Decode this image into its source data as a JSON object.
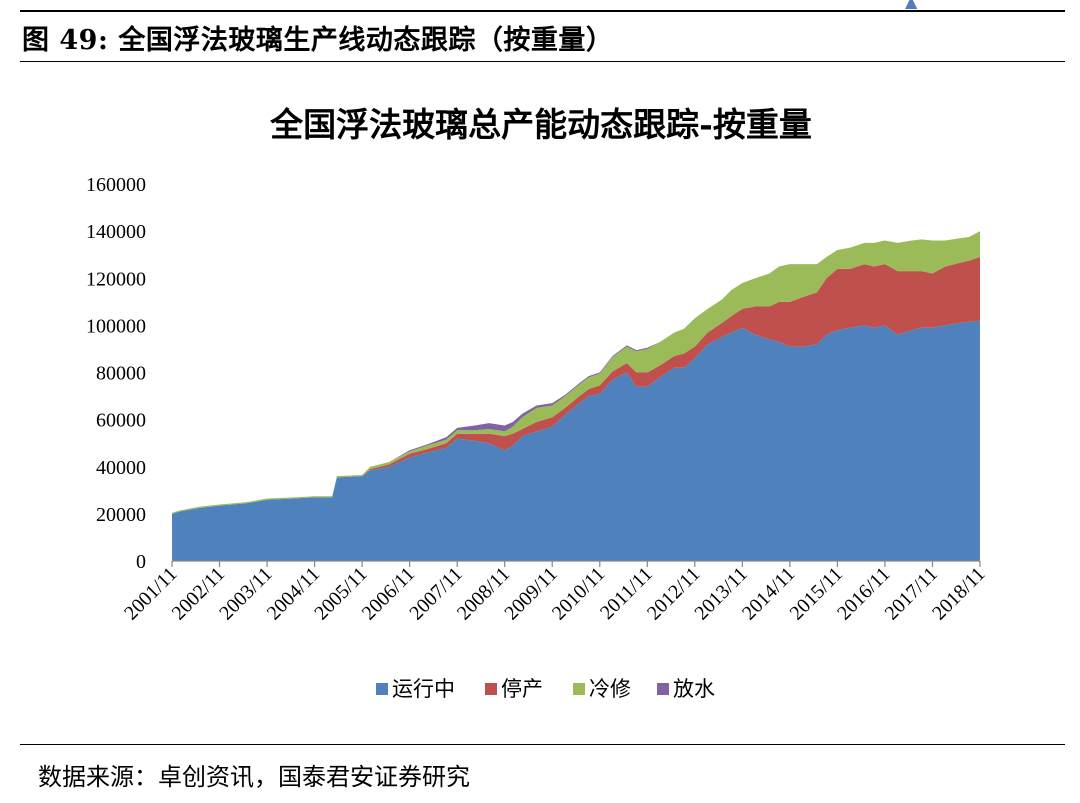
{
  "figure": {
    "label": "图 49:  全国浮法玻璃生产线动态跟踪（按重量）",
    "source": "数据来源：卓创资讯，国泰君安证券研究"
  },
  "chart_data": {
    "type": "area",
    "stacked": true,
    "title": "全国浮法玻璃总产能动态跟踪-按重量",
    "xlabel": "",
    "ylabel": "",
    "ylim": [
      0,
      160000
    ],
    "yticks": [
      "0",
      "20000",
      "40000",
      "60000",
      "80000",
      "100000",
      "120000",
      "140000",
      "160000"
    ],
    "xticks": [
      "2001/11",
      "2002/11",
      "2003/11",
      "2004/11",
      "2005/11",
      "2006/11",
      "2007/11",
      "2008/11",
      "2009/11",
      "2010/11",
      "2011/11",
      "2012/11",
      "2013/11",
      "2014/11",
      "2015/11",
      "2016/11",
      "2017/11",
      "2018/11"
    ],
    "legend_position": "bottom",
    "x": [
      2001.83,
      2002.0,
      2002.4,
      2002.83,
      2003.4,
      2003.83,
      2004.4,
      2004.83,
      2005.2,
      2005.3,
      2005.83,
      2006.0,
      2006.4,
      2006.83,
      2007.2,
      2007.6,
      2007.83,
      2008.2,
      2008.5,
      2008.83,
      2009.0,
      2009.2,
      2009.5,
      2009.83,
      2010.1,
      2010.4,
      2010.6,
      2010.83,
      2011.1,
      2011.4,
      2011.6,
      2011.83,
      2012.1,
      2012.4,
      2012.6,
      2012.83,
      2013.1,
      2013.4,
      2013.6,
      2013.83,
      2014.1,
      2014.4,
      2014.6,
      2014.83,
      2015.1,
      2015.4,
      2015.6,
      2015.83,
      2016.1,
      2016.4,
      2016.6,
      2016.83,
      2017.1,
      2017.4,
      2017.6,
      2017.83,
      2018.1,
      2018.4,
      2018.6,
      2018.83
    ],
    "series": [
      {
        "name": "运行中",
        "color": "#4f81bd",
        "values": [
          20000,
          21000,
          22500,
          23500,
          24500,
          26000,
          26500,
          27000,
          27000,
          35500,
          36000,
          38500,
          40000,
          44000,
          46000,
          48000,
          52000,
          51000,
          50000,
          47000,
          49000,
          53000,
          55000,
          57000,
          62000,
          67000,
          70000,
          71000,
          77000,
          80000,
          74000,
          74000,
          78000,
          82000,
          82000,
          86000,
          92000,
          95000,
          97000,
          99000,
          96000,
          94000,
          93000,
          91000,
          91000,
          92000,
          96000,
          98000,
          99000,
          100000,
          99000,
          100000,
          96000,
          98000,
          99000,
          99000,
          100000,
          101000,
          101500,
          102000
        ]
      },
      {
        "name": "停产",
        "color": "#c0504d",
        "values": [
          0,
          0,
          0,
          0,
          0,
          0,
          0,
          0,
          0,
          0,
          0,
          500,
          1000,
          1500,
          1500,
          2000,
          2000,
          3000,
          4000,
          6000,
          5000,
          3000,
          4000,
          4000,
          3000,
          3000,
          3000,
          3500,
          3500,
          4000,
          6000,
          6000,
          5000,
          5000,
          6000,
          5000,
          5000,
          6000,
          7000,
          8000,
          12000,
          14000,
          17000,
          19000,
          21000,
          22000,
          24000,
          26000,
          25000,
          26000,
          26000,
          26000,
          27000,
          25000,
          24000,
          23000,
          25000,
          25500,
          26000,
          27000
        ]
      },
      {
        "name": "冷修",
        "color": "#9bbb59",
        "values": [
          500,
          500,
          500,
          500,
          500,
          500,
          500,
          500,
          500,
          500,
          500,
          1000,
          1000,
          1000,
          1500,
          1500,
          1500,
          1500,
          2000,
          2000,
          3000,
          5000,
          6000,
          5000,
          5000,
          5000,
          5000,
          5000,
          6000,
          7000,
          9000,
          10000,
          10000,
          10000,
          10500,
          12000,
          10000,
          10000,
          11000,
          11000,
          12000,
          14000,
          15000,
          16000,
          14000,
          12000,
          9000,
          8000,
          9000,
          9000,
          10000,
          10000,
          12000,
          13000,
          13500,
          14000,
          11000,
          10500,
          10000,
          11000
        ]
      },
      {
        "name": "放水",
        "color": "#8064a2",
        "values": [
          0,
          0,
          0,
          0,
          0,
          0,
          0,
          0,
          0,
          0,
          0,
          0,
          0,
          500,
          500,
          1000,
          1000,
          2000,
          2500,
          2500,
          2000,
          1500,
          1000,
          1000,
          500,
          500,
          500,
          500,
          500,
          500,
          500,
          500,
          0,
          0,
          0,
          0,
          0,
          0,
          0,
          0,
          0,
          0,
          0,
          0,
          0,
          0,
          0,
          0,
          0,
          0,
          0,
          0,
          0,
          0,
          0,
          0,
          0,
          0,
          0,
          0
        ]
      }
    ]
  }
}
